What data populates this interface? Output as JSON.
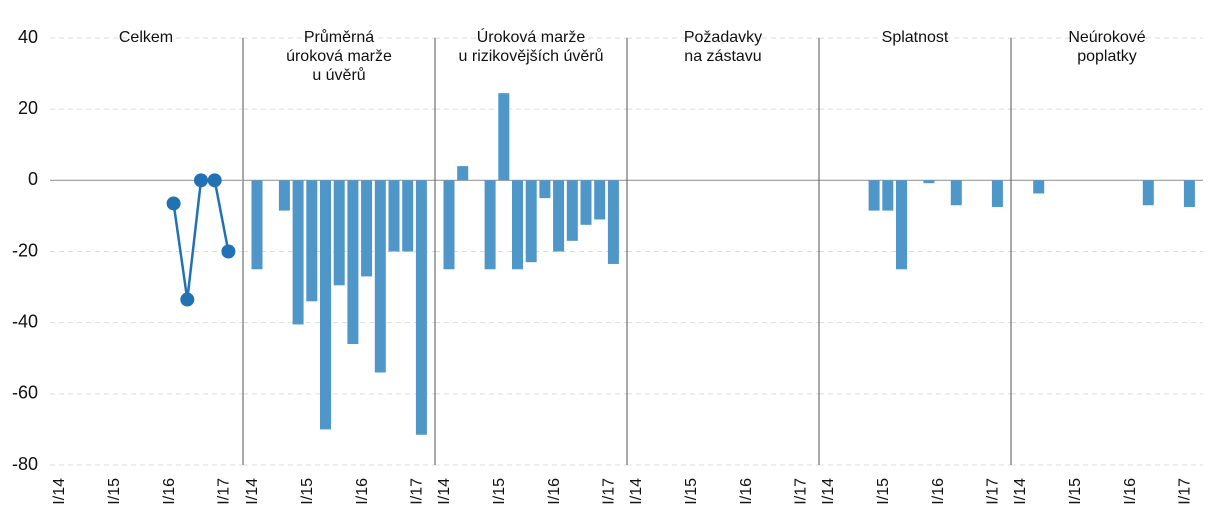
{
  "chart_data": [
    {
      "type": "line",
      "title": [
        "Celkem"
      ],
      "categories": [
        "I/14",
        null,
        null,
        null,
        "I/15",
        null,
        null,
        null,
        "I/16",
        null,
        null,
        null,
        "I/17"
      ],
      "values": [
        null,
        null,
        null,
        null,
        null,
        null,
        null,
        null,
        -6.5,
        -33.5,
        0,
        0,
        -20
      ],
      "color": "#2171b5",
      "ylim": [
        -80,
        40
      ],
      "yticks": [
        -80,
        -60,
        -40,
        -20,
        0,
        20,
        40
      ],
      "grid": true
    },
    {
      "type": "bar",
      "title": [
        "Průměrná",
        "úroková marže",
        "u úvěrů"
      ],
      "categories": [
        "I/14",
        null,
        null,
        null,
        "I/15",
        null,
        null,
        null,
        "I/16",
        null,
        null,
        null,
        "I/17"
      ],
      "values": [
        -25,
        null,
        -8.5,
        -40.5,
        -34,
        -70,
        -29.5,
        -46,
        -27,
        -54,
        -20,
        -20,
        -71.5
      ],
      "color": "#4f97c9",
      "ylim": [
        -80,
        40
      ],
      "yticks": [
        -80,
        -60,
        -40,
        -20,
        0,
        20,
        40
      ],
      "grid": true
    },
    {
      "type": "bar",
      "title": [
        "Úroková marže",
        "u rizikovějších úvěrů"
      ],
      "categories": [
        "I/14",
        null,
        null,
        null,
        "I/15",
        null,
        null,
        null,
        "I/16",
        null,
        null,
        null,
        "I/17"
      ],
      "values": [
        -25,
        4,
        null,
        -25,
        24.5,
        -25,
        -23,
        -5,
        -20,
        -17,
        -12.5,
        -11,
        -23.5
      ],
      "color": "#4f97c9",
      "ylim": [
        -80,
        40
      ],
      "yticks": [
        -80,
        -60,
        -40,
        -20,
        0,
        20,
        40
      ],
      "grid": true
    },
    {
      "type": "bar",
      "title": [
        "Požadavky",
        "na zástavu"
      ],
      "categories": [
        "I/14",
        null,
        null,
        null,
        "I/15",
        null,
        null,
        null,
        "I/16",
        null,
        null,
        null,
        "I/17"
      ],
      "values": [
        null,
        null,
        null,
        null,
        null,
        null,
        null,
        null,
        null,
        null,
        null,
        null,
        null
      ],
      "color": "#4f97c9",
      "ylim": [
        -80,
        40
      ],
      "yticks": [
        -80,
        -60,
        -40,
        -20,
        0,
        20,
        40
      ],
      "grid": true
    },
    {
      "type": "bar",
      "title": [
        "Splatnost"
      ],
      "categories": [
        "I/14",
        null,
        null,
        null,
        "I/15",
        null,
        null,
        null,
        "I/16",
        null,
        null,
        null,
        "I/17"
      ],
      "values": [
        null,
        null,
        null,
        -8.5,
        -8.5,
        -25,
        null,
        -0.8,
        null,
        -7,
        null,
        null,
        -7.5
      ],
      "color": "#4f97c9",
      "ylim": [
        -80,
        40
      ],
      "yticks": [
        -80,
        -60,
        -40,
        -20,
        0,
        20,
        40
      ],
      "grid": true
    },
    {
      "type": "bar",
      "title": [
        "Neúrokové",
        "poplatky"
      ],
      "categories": [
        "I/14",
        null,
        null,
        null,
        "I/15",
        null,
        null,
        null,
        "I/16",
        null,
        null,
        null,
        "I/17"
      ],
      "values": [
        null,
        -3.7,
        null,
        null,
        null,
        null,
        null,
        null,
        null,
        -7,
        null,
        null,
        -7.5
      ],
      "color": "#4f97c9",
      "ylim": [
        -80,
        40
      ],
      "yticks": [
        -80,
        -60,
        -40,
        -20,
        0,
        20,
        40
      ],
      "grid": true
    }
  ]
}
